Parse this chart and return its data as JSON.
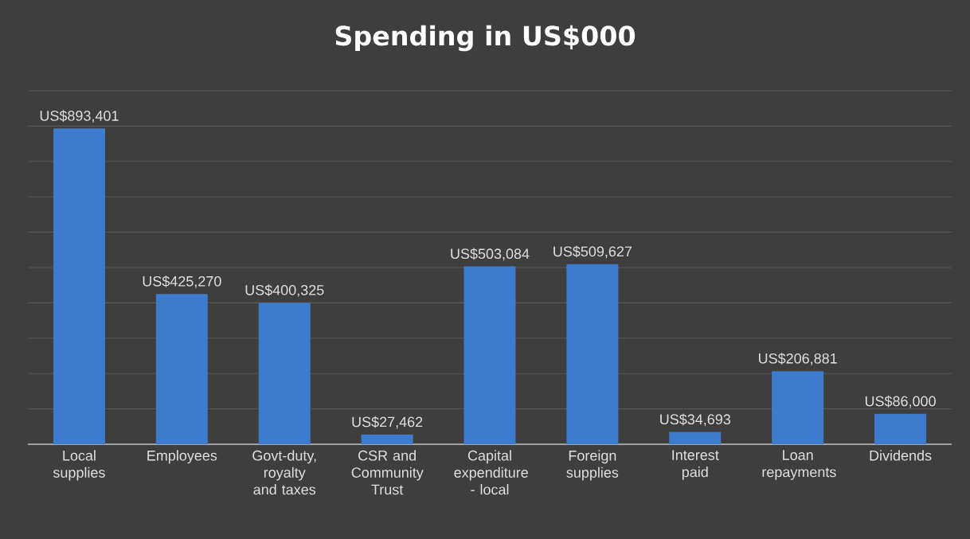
{
  "chart_data": {
    "type": "bar",
    "title": "Spending in US$000",
    "categories": [
      "Local supplies",
      "Employees",
      "Govt-duty, royalty and taxes",
      "CSR and Community Trust",
      "Capital expenditure - local",
      "Foreign supplies",
      "Interest paid",
      "Loan repayments",
      "Dividends"
    ],
    "values": [
      893401,
      425270,
      400325,
      27462,
      503084,
      509627,
      34693,
      206881,
      86000
    ],
    "value_labels": [
      "US$893,401",
      "US$425,270",
      "US$400,325",
      "US$27,462",
      "US$503,084",
      "US$509,627",
      "US$34,693",
      "US$206,881",
      "US$86,000"
    ],
    "color": "#3d7ccc",
    "ylim": [
      0,
      1000000
    ],
    "yticks": [
      {
        "value": 0,
        "label": null
      },
      {
        "value": 100000,
        "label": null
      },
      {
        "value": 200000,
        "label": null
      },
      {
        "value": 300000,
        "label": null
      },
      {
        "value": 400000,
        "label": null
      },
      {
        "value": 500000,
        "label": null
      },
      {
        "value": 600000,
        "label": null
      },
      {
        "value": 700000,
        "label": null
      },
      {
        "value": 800000,
        "label": null
      },
      {
        "value": 900000,
        "label": null
      },
      {
        "value": 1000000,
        "label": null
      }
    ],
    "grid": "y",
    "tick_labels": "x"
  }
}
